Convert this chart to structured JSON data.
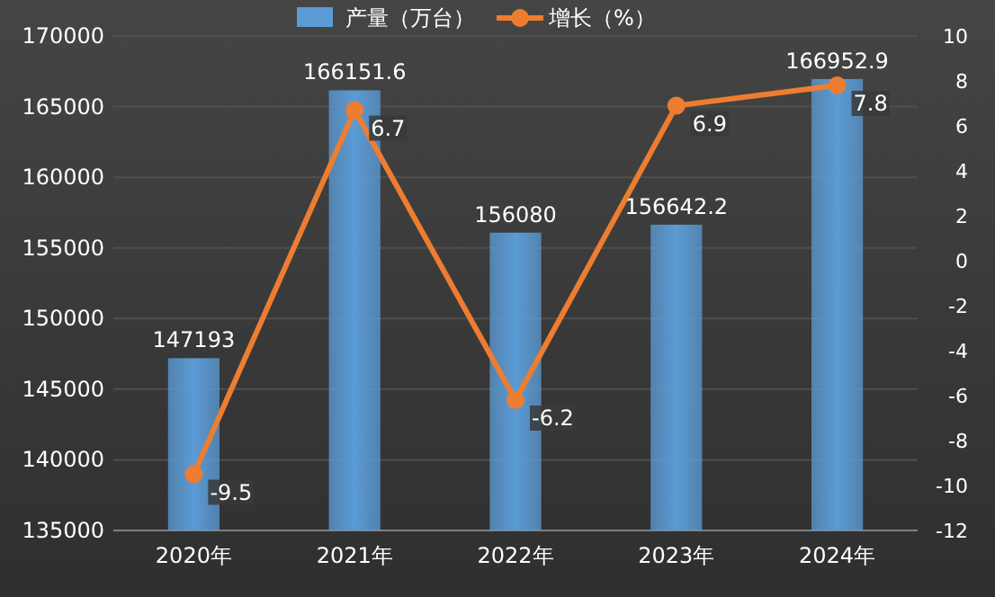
{
  "chart_data": {
    "type": "bar",
    "categories": [
      "2020年",
      "2021年",
      "2022年",
      "2023年",
      "2024年"
    ],
    "series": [
      {
        "name": "产量（万台）",
        "color": "#5b9bd5",
        "values": [
          147193,
          166151.6,
          156080,
          156642.2,
          166952.9
        ]
      },
      {
        "name": "增长（%）",
        "type": "line",
        "axis": "y2",
        "color": "#ed7d31",
        "marker": "circle",
        "values": [
          -9.5,
          6.7,
          -6.2,
          6.9,
          7.8
        ]
      }
    ],
    "ylim": [
      135000,
      170000
    ],
    "yticks": [
      135000,
      140000,
      145000,
      150000,
      155000,
      160000,
      165000,
      170000
    ],
    "y2lim": [
      -12,
      10
    ],
    "y2ticks": [
      -12,
      -10,
      -8,
      -6,
      -4,
      -2,
      0,
      2,
      4,
      6,
      8,
      10
    ],
    "data_labels": true,
    "legend": "top",
    "grid": "y"
  }
}
